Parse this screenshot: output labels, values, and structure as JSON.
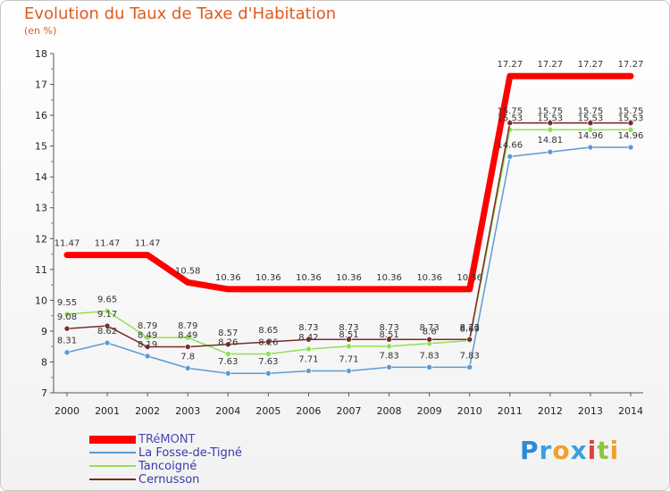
{
  "title": "Evolution du Taux de Taxe d'Habitation",
  "unit_label": "(en %)",
  "logo": {
    "letters": [
      "P",
      "r",
      "o",
      "x",
      "i",
      "t",
      "i"
    ],
    "colors": [
      "#2b8ad6",
      "#3aa0e0",
      "#f0a030",
      "#3aa0e0",
      "#e04040",
      "#8cc63f",
      "#f0a030"
    ]
  },
  "chart_data": {
    "type": "line",
    "title": "Evolution du Taux de Taxe d'Habitation",
    "ylabel": "(en %)",
    "xlabel": "",
    "x": [
      "2000",
      "2001",
      "2002",
      "2003",
      "2004",
      "2005",
      "2006",
      "2007",
      "2008",
      "2009",
      "2010",
      "2011",
      "2012",
      "2013",
      "2014"
    ],
    "ylim": [
      7,
      18
    ],
    "yticks": [
      "7",
      "8",
      "9",
      "10",
      "11",
      "12",
      "13",
      "14",
      "15",
      "16",
      "17",
      "18"
    ],
    "grid": false,
    "legend": "bottom-left",
    "series": [
      {
        "name": "TRéMONT",
        "color": "#ff0000",
        "bold": true,
        "values": [
          11.47,
          11.47,
          11.47,
          10.58,
          10.36,
          10.36,
          10.36,
          10.36,
          10.36,
          10.36,
          10.36,
          17.27,
          17.27,
          17.27,
          17.27
        ],
        "labels": [
          "11.47",
          "11.47",
          "11.47",
          "10.58",
          "10.36",
          "10.36",
          "10.36",
          "10.36",
          "10.36",
          "10.36",
          "10.36",
          "17.27",
          "17.27",
          "17.27",
          "17.27"
        ]
      },
      {
        "name": "La Fosse-de-Tigné",
        "color": "#5b9bd5",
        "bold": false,
        "values": [
          8.31,
          8.62,
          8.19,
          7.8,
          7.63,
          7.63,
          7.71,
          7.71,
          7.83,
          7.83,
          7.83,
          14.66,
          14.81,
          14.96,
          14.96
        ],
        "labels": [
          "8.31",
          "8.62",
          "8.19",
          "7.8",
          "7.63",
          "7.63",
          "7.71",
          "7.71",
          "7.83",
          "7.83",
          "7.83",
          "14.66",
          "14.81",
          "14.96",
          "14.96"
        ]
      },
      {
        "name": "Tancoigné",
        "color": "#90e050",
        "bold": false,
        "values": [
          9.55,
          9.65,
          8.79,
          8.79,
          8.26,
          8.26,
          8.42,
          8.51,
          8.51,
          8.6,
          8.69,
          15.53,
          15.53,
          15.53,
          15.53
        ],
        "labels": [
          "9.55",
          "9.65",
          "8.79",
          "8.79",
          "8.26",
          "8.26",
          "8.42",
          "8.51",
          "8.51",
          "8.6",
          "8.69",
          "15.53",
          "15.53",
          "15.53",
          "15.53"
        ]
      },
      {
        "name": "Cernusson",
        "color": "#7a2a2a",
        "bold": false,
        "values": [
          9.08,
          9.17,
          8.49,
          8.49,
          8.57,
          8.65,
          8.73,
          8.73,
          8.73,
          8.73,
          8.73,
          15.75,
          15.75,
          15.75,
          15.75
        ],
        "labels": [
          "9.08",
          "9.17",
          "8.49",
          "8.49",
          "8.57",
          "8.65",
          "8.73",
          "8.73",
          "8.73",
          "8.73",
          "8.73",
          "15.75",
          "15.75",
          "15.75",
          "15.75"
        ]
      }
    ]
  }
}
